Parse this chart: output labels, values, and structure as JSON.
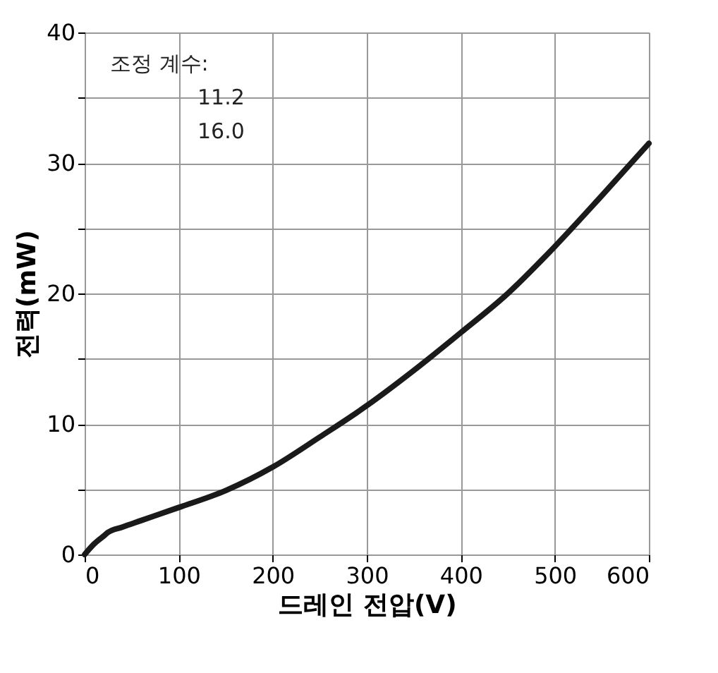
{
  "chart_data": {
    "type": "line",
    "xlabel": "드레인 전압(V)",
    "ylabel": "전력(mW)",
    "x": [
      0,
      10,
      20,
      25,
      40,
      60,
      100,
      150,
      200,
      250,
      300,
      350,
      400,
      450,
      500,
      550,
      600
    ],
    "series": [
      {
        "color": "#1a1a1a",
        "values": [
          0,
          0.8,
          1.4,
          1.7,
          2.1,
          2.6,
          3.6,
          4.9,
          6.7,
          9.0,
          11.4,
          14.1,
          17.0,
          20.0,
          23.6,
          27.5,
          31.5
        ]
      }
    ],
    "xlim": [
      0,
      600
    ],
    "xticks": [
      0,
      100,
      200,
      300,
      400,
      500,
      600
    ],
    "ylim": [
      0,
      40
    ],
    "yticks": [
      0,
      {
        "value": 5,
        "label": null
      },
      10,
      {
        "value": 15,
        "label": null
      },
      20,
      {
        "value": 25,
        "label": null
      },
      30,
      {
        "value": 35,
        "label": null
      },
      40
    ],
    "grid": true,
    "marker": "none",
    "line_style": "solid",
    "annotations": [
      "조정 계수:",
      "11.2",
      "16.0"
    ]
  }
}
